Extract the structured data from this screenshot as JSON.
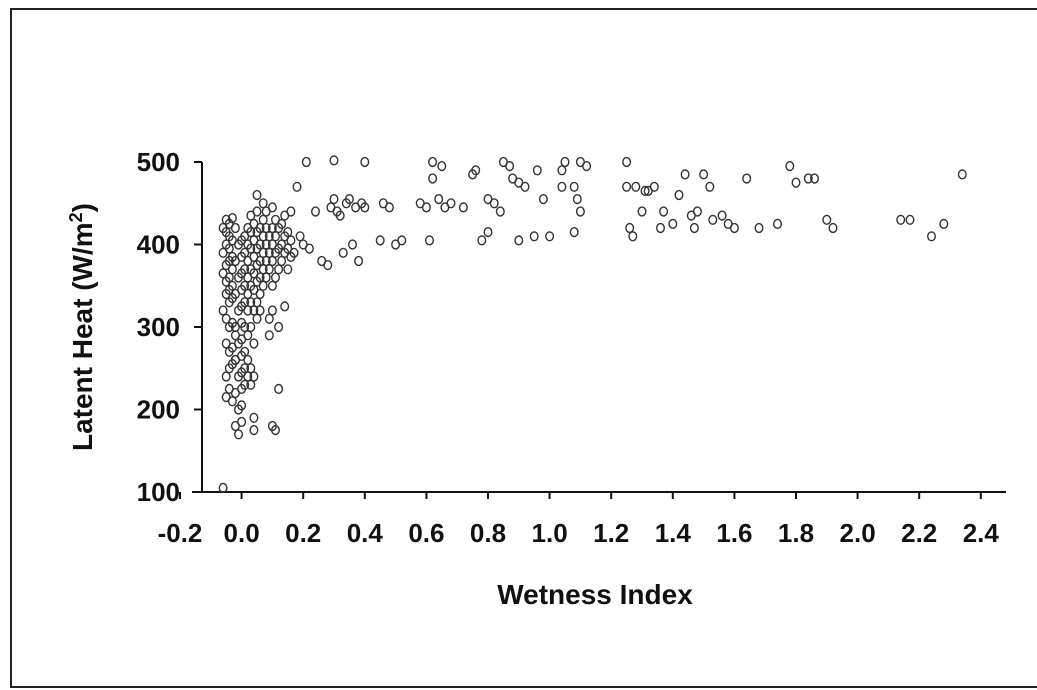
{
  "chart_data": {
    "type": "scatter",
    "title": "",
    "xlabel": "Wetness Index",
    "ylabel": "Latent Heat (W/m2)",
    "ylabel_main": "Latent Heat (W/m",
    "ylabel_sup": "2",
    "ylabel_close": ")",
    "xlim": [
      -0.2,
      2.5
    ],
    "ylim": [
      100,
      500
    ],
    "x_ticks": [
      -0.2,
      0.0,
      0.2,
      0.4,
      0.6,
      0.8,
      1.0,
      1.2,
      1.4,
      1.6,
      1.8,
      2.0,
      2.2,
      2.4
    ],
    "x_tick_labels": [
      "-0.2",
      "0.0",
      "0.2",
      "0.4",
      "0.6",
      "0.8",
      "1.0",
      "1.2",
      "1.4",
      "1.6",
      "1.8",
      "2.0",
      "2.2",
      "2.4"
    ],
    "y_ticks": [
      100,
      200,
      300,
      400,
      500
    ],
    "y_tick_labels": [
      "100",
      "200",
      "300",
      "400",
      "500"
    ],
    "grid": false,
    "marker": "open-circle",
    "marker_color": "#333333",
    "points": [
      [
        -0.06,
        105
      ],
      [
        -0.05,
        215
      ],
      [
        -0.04,
        225
      ],
      [
        -0.03,
        210
      ],
      [
        -0.05,
        240
      ],
      [
        -0.04,
        250
      ],
      [
        -0.03,
        255
      ],
      [
        -0.02,
        260
      ],
      [
        -0.04,
        270
      ],
      [
        -0.05,
        280
      ],
      [
        -0.03,
        275
      ],
      [
        -0.02,
        290
      ],
      [
        -0.04,
        300
      ],
      [
        -0.03,
        305
      ],
      [
        -0.05,
        310
      ],
      [
        -0.06,
        320
      ],
      [
        -0.04,
        330
      ],
      [
        -0.03,
        335
      ],
      [
        -0.05,
        340
      ],
      [
        -0.04,
        345
      ],
      [
        -0.03,
        350
      ],
      [
        -0.05,
        355
      ],
      [
        -0.04,
        360
      ],
      [
        -0.06,
        365
      ],
      [
        -0.03,
        370
      ],
      [
        -0.05,
        375
      ],
      [
        -0.04,
        380
      ],
      [
        -0.03,
        385
      ],
      [
        -0.06,
        390
      ],
      [
        -0.04,
        395
      ],
      [
        -0.05,
        400
      ],
      [
        -0.03,
        405
      ],
      [
        -0.04,
        410
      ],
      [
        -0.05,
        415
      ],
      [
        -0.06,
        420
      ],
      [
        -0.04,
        425
      ],
      [
        -0.05,
        430
      ],
      [
        -0.03,
        432
      ],
      [
        -0.02,
        420
      ],
      [
        -0.01,
        400
      ],
      [
        -0.02,
        380
      ],
      [
        -0.01,
        360
      ],
      [
        -0.02,
        340
      ],
      [
        -0.01,
        320
      ],
      [
        -0.02,
        300
      ],
      [
        -0.01,
        280
      ],
      [
        -0.02,
        260
      ],
      [
        -0.01,
        240
      ],
      [
        -0.02,
        220
      ],
      [
        -0.01,
        200
      ],
      [
        -0.02,
        180
      ],
      [
        -0.01,
        170
      ],
      [
        0.0,
        185
      ],
      [
        0.0,
        205
      ],
      [
        0.0,
        225
      ],
      [
        0.0,
        245
      ],
      [
        0.0,
        265
      ],
      [
        0.0,
        285
      ],
      [
        0.0,
        305
      ],
      [
        0.0,
        325
      ],
      [
        0.0,
        345
      ],
      [
        0.0,
        365
      ],
      [
        0.0,
        385
      ],
      [
        0.0,
        405
      ],
      [
        0.01,
        230
      ],
      [
        0.01,
        250
      ],
      [
        0.01,
        270
      ],
      [
        0.01,
        300
      ],
      [
        0.01,
        330
      ],
      [
        0.01,
        350
      ],
      [
        0.01,
        370
      ],
      [
        0.01,
        390
      ],
      [
        0.01,
        410
      ],
      [
        0.02,
        240
      ],
      [
        0.02,
        260
      ],
      [
        0.02,
        290
      ],
      [
        0.02,
        320
      ],
      [
        0.02,
        340
      ],
      [
        0.02,
        360
      ],
      [
        0.02,
        380
      ],
      [
        0.02,
        400
      ],
      [
        0.02,
        420
      ],
      [
        0.03,
        230
      ],
      [
        0.03,
        250
      ],
      [
        0.03,
        300
      ],
      [
        0.03,
        330
      ],
      [
        0.03,
        350
      ],
      [
        0.03,
        370
      ],
      [
        0.03,
        395
      ],
      [
        0.03,
        415
      ],
      [
        0.03,
        435
      ],
      [
        0.04,
        175
      ],
      [
        0.04,
        190
      ],
      [
        0.04,
        240
      ],
      [
        0.04,
        280
      ],
      [
        0.04,
        320
      ],
      [
        0.04,
        345
      ],
      [
        0.04,
        365
      ],
      [
        0.04,
        385
      ],
      [
        0.04,
        405
      ],
      [
        0.04,
        425
      ],
      [
        0.05,
        310
      ],
      [
        0.05,
        330
      ],
      [
        0.05,
        355
      ],
      [
        0.05,
        375
      ],
      [
        0.05,
        395
      ],
      [
        0.05,
        415
      ],
      [
        0.05,
        440
      ],
      [
        0.05,
        460
      ],
      [
        0.06,
        320
      ],
      [
        0.06,
        340
      ],
      [
        0.06,
        360
      ],
      [
        0.06,
        380
      ],
      [
        0.06,
        400
      ],
      [
        0.06,
        420
      ],
      [
        0.07,
        350
      ],
      [
        0.07,
        370
      ],
      [
        0.07,
        390
      ],
      [
        0.07,
        410
      ],
      [
        0.07,
        430
      ],
      [
        0.07,
        450
      ],
      [
        0.08,
        360
      ],
      [
        0.08,
        380
      ],
      [
        0.08,
        400
      ],
      [
        0.08,
        420
      ],
      [
        0.08,
        440
      ],
      [
        0.09,
        290
      ],
      [
        0.09,
        310
      ],
      [
        0.09,
        370
      ],
      [
        0.09,
        390
      ],
      [
        0.09,
        410
      ],
      [
        0.1,
        180
      ],
      [
        0.1,
        320
      ],
      [
        0.1,
        350
      ],
      [
        0.1,
        380
      ],
      [
        0.1,
        400
      ],
      [
        0.1,
        420
      ],
      [
        0.1,
        445
      ],
      [
        0.11,
        175
      ],
      [
        0.11,
        360
      ],
      [
        0.11,
        390
      ],
      [
        0.11,
        410
      ],
      [
        0.11,
        430
      ],
      [
        0.12,
        225
      ],
      [
        0.12,
        300
      ],
      [
        0.12,
        370
      ],
      [
        0.12,
        395
      ],
      [
        0.12,
        420
      ],
      [
        0.13,
        380
      ],
      [
        0.13,
        400
      ],
      [
        0.13,
        425
      ],
      [
        0.14,
        325
      ],
      [
        0.14,
        390
      ],
      [
        0.14,
        410
      ],
      [
        0.14,
        435
      ],
      [
        0.15,
        370
      ],
      [
        0.15,
        395
      ],
      [
        0.15,
        415
      ],
      [
        0.16,
        385
      ],
      [
        0.16,
        405
      ],
      [
        0.16,
        440
      ],
      [
        0.17,
        390
      ],
      [
        0.18,
        470
      ],
      [
        0.19,
        410
      ],
      [
        0.2,
        400
      ],
      [
        0.21,
        500
      ],
      [
        0.22,
        395
      ],
      [
        0.24,
        440
      ],
      [
        0.26,
        380
      ],
      [
        0.28,
        375
      ],
      [
        0.29,
        445
      ],
      [
        0.3,
        455
      ],
      [
        0.3,
        502
      ],
      [
        0.31,
        440
      ],
      [
        0.32,
        435
      ],
      [
        0.33,
        390
      ],
      [
        0.34,
        450
      ],
      [
        0.35,
        455
      ],
      [
        0.36,
        400
      ],
      [
        0.37,
        445
      ],
      [
        0.38,
        380
      ],
      [
        0.39,
        450
      ],
      [
        0.4,
        445
      ],
      [
        0.4,
        500
      ],
      [
        0.45,
        405
      ],
      [
        0.46,
        450
      ],
      [
        0.48,
        445
      ],
      [
        0.5,
        400
      ],
      [
        0.52,
        405
      ],
      [
        0.58,
        450
      ],
      [
        0.6,
        445
      ],
      [
        0.61,
        405
      ],
      [
        0.62,
        480
      ],
      [
        0.62,
        500
      ],
      [
        0.64,
        455
      ],
      [
        0.65,
        495
      ],
      [
        0.66,
        445
      ],
      [
        0.68,
        450
      ],
      [
        0.72,
        445
      ],
      [
        0.75,
        485
      ],
      [
        0.76,
        490
      ],
      [
        0.78,
        405
      ],
      [
        0.8,
        455
      ],
      [
        0.8,
        415
      ],
      [
        0.82,
        450
      ],
      [
        0.84,
        440
      ],
      [
        0.85,
        500
      ],
      [
        0.87,
        495
      ],
      [
        0.88,
        480
      ],
      [
        0.9,
        405
      ],
      [
        0.9,
        475
      ],
      [
        0.92,
        470
      ],
      [
        0.95,
        410
      ],
      [
        0.96,
        490
      ],
      [
        0.98,
        455
      ],
      [
        1.0,
        410
      ],
      [
        1.04,
        470
      ],
      [
        1.04,
        490
      ],
      [
        1.05,
        500
      ],
      [
        1.08,
        415
      ],
      [
        1.08,
        470
      ],
      [
        1.09,
        455
      ],
      [
        1.1,
        440
      ],
      [
        1.1,
        500
      ],
      [
        1.12,
        495
      ],
      [
        1.25,
        500
      ],
      [
        1.25,
        470
      ],
      [
        1.26,
        420
      ],
      [
        1.27,
        410
      ],
      [
        1.28,
        470
      ],
      [
        1.3,
        440
      ],
      [
        1.31,
        465
      ],
      [
        1.32,
        465
      ],
      [
        1.34,
        470
      ],
      [
        1.36,
        420
      ],
      [
        1.37,
        440
      ],
      [
        1.4,
        425
      ],
      [
        1.42,
        460
      ],
      [
        1.44,
        485
      ],
      [
        1.46,
        435
      ],
      [
        1.47,
        420
      ],
      [
        1.48,
        440
      ],
      [
        1.5,
        485
      ],
      [
        1.52,
        470
      ],
      [
        1.53,
        430
      ],
      [
        1.56,
        435
      ],
      [
        1.58,
        425
      ],
      [
        1.6,
        420
      ],
      [
        1.64,
        480
      ],
      [
        1.68,
        420
      ],
      [
        1.74,
        425
      ],
      [
        1.78,
        495
      ],
      [
        1.8,
        475
      ],
      [
        1.84,
        480
      ],
      [
        1.86,
        480
      ],
      [
        1.9,
        430
      ],
      [
        1.92,
        420
      ],
      [
        2.14,
        430
      ],
      [
        2.17,
        430
      ],
      [
        2.24,
        410
      ],
      [
        2.28,
        425
      ],
      [
        2.34,
        485
      ]
    ]
  }
}
